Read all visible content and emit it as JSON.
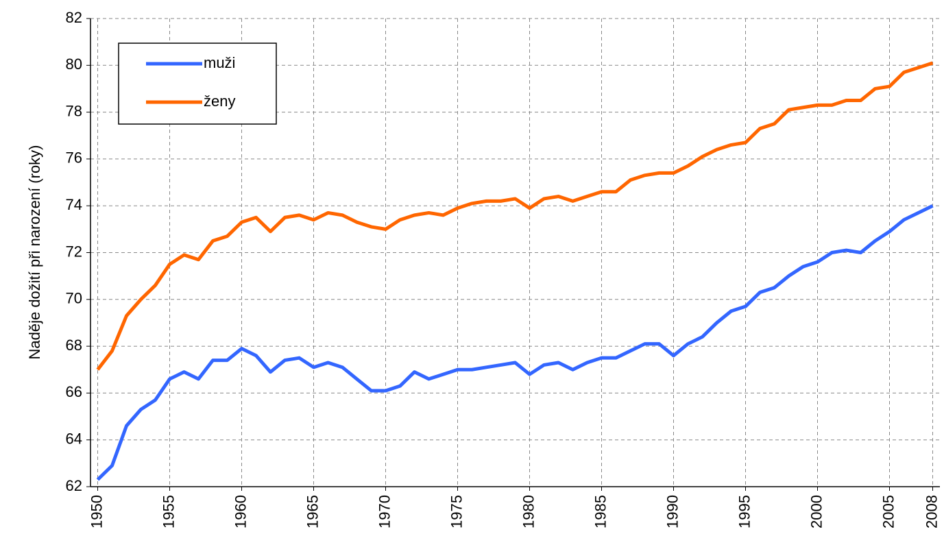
{
  "chart_data": {
    "type": "line",
    "y_label": "Naděje dožití při narození (roky)",
    "x": [
      1950,
      1951,
      1952,
      1953,
      1954,
      1955,
      1956,
      1957,
      1958,
      1959,
      1960,
      1961,
      1962,
      1963,
      1964,
      1965,
      1966,
      1967,
      1968,
      1969,
      1970,
      1971,
      1972,
      1973,
      1974,
      1975,
      1976,
      1977,
      1978,
      1979,
      1980,
      1981,
      1982,
      1983,
      1984,
      1985,
      1986,
      1987,
      1988,
      1989,
      1990,
      1991,
      1992,
      1993,
      1994,
      1995,
      1996,
      1997,
      1998,
      1999,
      2000,
      2001,
      2002,
      2003,
      2004,
      2005,
      2006,
      2007,
      2008
    ],
    "series": [
      {
        "name": "muži",
        "color": "#3366ff",
        "values": [
          62.3,
          62.9,
          64.6,
          65.3,
          65.7,
          66.6,
          66.9,
          66.6,
          67.4,
          67.4,
          67.9,
          67.6,
          66.9,
          67.4,
          67.5,
          67.1,
          67.3,
          67.1,
          66.6,
          66.1,
          66.1,
          66.3,
          66.9,
          66.6,
          66.8,
          67.0,
          67.0,
          67.1,
          67.2,
          67.3,
          66.8,
          67.2,
          67.3,
          67.0,
          67.3,
          67.5,
          67.5,
          67.8,
          68.1,
          68.1,
          67.6,
          68.1,
          68.4,
          69.0,
          69.5,
          69.7,
          70.3,
          70.5,
          71.0,
          71.4,
          71.6,
          72.0,
          72.1,
          72.0,
          72.5,
          72.9,
          73.4,
          73.7,
          74.0
        ]
      },
      {
        "name": "ženy",
        "color": "#ff6600",
        "values": [
          67.0,
          67.8,
          69.3,
          70.0,
          70.6,
          71.5,
          71.9,
          71.7,
          72.5,
          72.7,
          73.3,
          73.5,
          72.9,
          73.5,
          73.6,
          73.4,
          73.7,
          73.6,
          73.3,
          73.1,
          73.0,
          73.4,
          73.6,
          73.7,
          73.6,
          73.9,
          74.1,
          74.2,
          74.2,
          74.3,
          73.9,
          74.3,
          74.4,
          74.2,
          74.4,
          74.6,
          74.6,
          75.1,
          75.3,
          75.4,
          75.4,
          75.7,
          76.1,
          76.4,
          76.6,
          76.7,
          77.3,
          77.5,
          78.1,
          78.2,
          78.3,
          78.3,
          78.5,
          78.5,
          79.0,
          79.1,
          79.7,
          79.9,
          80.1
        ]
      }
    ],
    "xlim": [
      1949.5,
      2008.5
    ],
    "xticks": [
      1950,
      1955,
      1960,
      1965,
      1970,
      1975,
      1980,
      1985,
      1990,
      1995,
      2000,
      2005,
      2008
    ],
    "ylim": [
      62,
      82
    ],
    "yticks": [
      62,
      64,
      66,
      68,
      70,
      72,
      74,
      76,
      78,
      80,
      82
    ],
    "grid": true,
    "legend": "upper left"
  }
}
